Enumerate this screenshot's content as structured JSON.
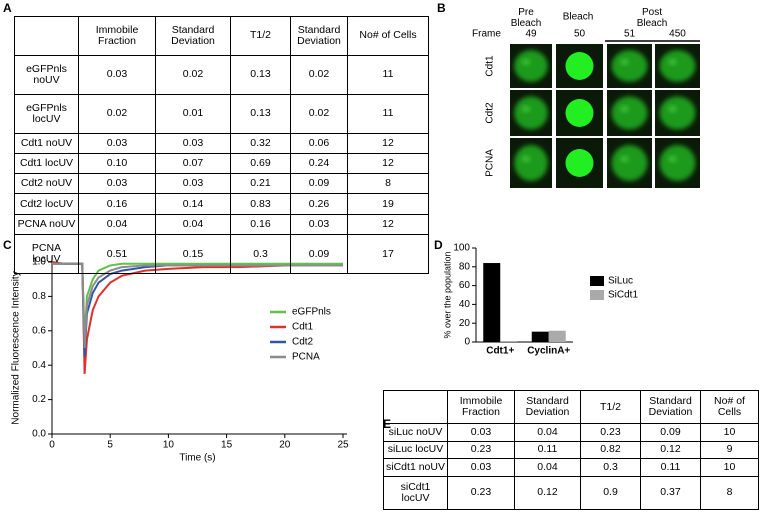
{
  "table_a": {
    "label": "A",
    "columns": [
      "Immobile Fraction",
      "Standard Deviation",
      "T1/2",
      "Standard Deviation",
      "No# of Cells"
    ],
    "rows": [
      {
        "name": "eGFPnls noUV",
        "cells": [
          "0.03",
          "0.02",
          "0.13",
          "0.02",
          "11"
        ]
      },
      {
        "name": "eGFPnls locUV",
        "cells": [
          "0.02",
          "0.01",
          "0.13",
          "0.02",
          "11"
        ]
      },
      {
        "name": "Cdt1 noUV",
        "cells": [
          "0.03",
          "0.03",
          "0.32",
          "0.06",
          "12"
        ]
      },
      {
        "name": "Cdt1 locUV",
        "cells": [
          "0.10",
          "0.07",
          "0.69",
          "0.24",
          "12"
        ]
      },
      {
        "name": "Cdt2 noUV",
        "cells": [
          "0.03",
          "0.03",
          "0.21",
          "0.09",
          "8"
        ]
      },
      {
        "name": "Cdt2 locUV",
        "cells": [
          "0.16",
          "0.14",
          "0.83",
          "0.26",
          "19"
        ]
      },
      {
        "name": "PCNA noUV",
        "cells": [
          "0.04",
          "0.04",
          "0.16",
          "0.03",
          "12"
        ]
      },
      {
        "name": "PCNA locUV",
        "cells": [
          "0.51",
          "0.15",
          "0.3",
          "0.09",
          "17"
        ]
      }
    ]
  },
  "panel_b": {
    "label": "B",
    "column_groups": [
      "Pre Bleach",
      "Bleach",
      "Post Bleach"
    ],
    "frame_label": "Frame",
    "frames": [
      "49",
      "50",
      "51",
      "450"
    ],
    "rows": [
      "Cdt1",
      "Cdt2",
      "PCNA"
    ]
  },
  "table_e": {
    "label": "E",
    "columns": [
      "Immobile Fraction",
      "Standard Deviation",
      "T1/2",
      "Standard Deviation",
      "No# of Cells"
    ],
    "rows": [
      {
        "name": "siLuc noUV",
        "cells": [
          "0.03",
          "0.04",
          "0.23",
          "0.09",
          "10"
        ]
      },
      {
        "name": "siLuc locUV",
        "cells": [
          "0.23",
          "0.11",
          "0.82",
          "0.12",
          "9"
        ]
      },
      {
        "name": "siCdt1 noUV",
        "cells": [
          "0.03",
          "0.04",
          "0.3",
          "0.11",
          "10"
        ]
      },
      {
        "name": "siCdt1 locUV",
        "cells": [
          "0.23",
          "0.12",
          "0.9",
          "0.37",
          "8"
        ]
      }
    ]
  },
  "chart_data": [
    {
      "type": "line",
      "panel_label": "C",
      "x_label": "Time (s)",
      "y_label": "Normalized Fluorescence Intensity",
      "x": [
        0,
        1,
        2,
        2.6,
        2.8,
        3,
        3.5,
        4,
        5,
        6,
        8,
        10,
        13,
        16,
        20,
        25
      ],
      "xlim": [
        0,
        25
      ],
      "xticks": [
        0,
        5,
        10,
        15,
        20,
        25
      ],
      "ylim": [
        0,
        1
      ],
      "yticks": [
        {
          "value": 0,
          "label": "0.0"
        },
        0.2,
        0.4,
        0.6,
        0.8,
        {
          "value": 1,
          "label": "1.0"
        }
      ],
      "series": [
        {
          "name": "eGFPnls",
          "color": "#5fc24a",
          "values": [
            0.99,
            0.99,
            0.99,
            0.99,
            0.55,
            0.8,
            0.9,
            0.95,
            0.98,
            0.99,
            0.99,
            0.99,
            0.99,
            0.99,
            0.99,
            0.99
          ]
        },
        {
          "name": "Cdt1",
          "color": "#e0302a",
          "values": [
            1.0,
            0.99,
            0.99,
            0.99,
            0.35,
            0.55,
            0.72,
            0.8,
            0.88,
            0.92,
            0.95,
            0.96,
            0.97,
            0.97,
            0.98,
            0.98
          ]
        },
        {
          "name": "Cdt2",
          "color": "#3355a8",
          "values": [
            0.99,
            0.99,
            0.99,
            0.99,
            0.45,
            0.7,
            0.82,
            0.88,
            0.93,
            0.95,
            0.97,
            0.98,
            0.98,
            0.98,
            0.98,
            0.98
          ]
        },
        {
          "name": "PCNA",
          "color": "#8c8c8c",
          "values": [
            0.99,
            0.99,
            0.99,
            0.99,
            0.5,
            0.75,
            0.86,
            0.91,
            0.95,
            0.97,
            0.98,
            0.98,
            0.98,
            0.98,
            0.98,
            0.98
          ]
        }
      ]
    },
    {
      "type": "bar",
      "panel_label": "D",
      "y_label": "% over the population",
      "categories": [
        "Cdt1+",
        "CyclinA+"
      ],
      "ylim": [
        0,
        100
      ],
      "yticks": [
        0,
        20,
        40,
        60,
        80,
        100
      ],
      "series": [
        {
          "name": "SiLuc",
          "color": "#000000",
          "values": [
            84,
            11
          ]
        },
        {
          "name": "SiCdt1",
          "color": "#aaaaaa",
          "values": [
            1,
            12
          ]
        }
      ]
    }
  ]
}
